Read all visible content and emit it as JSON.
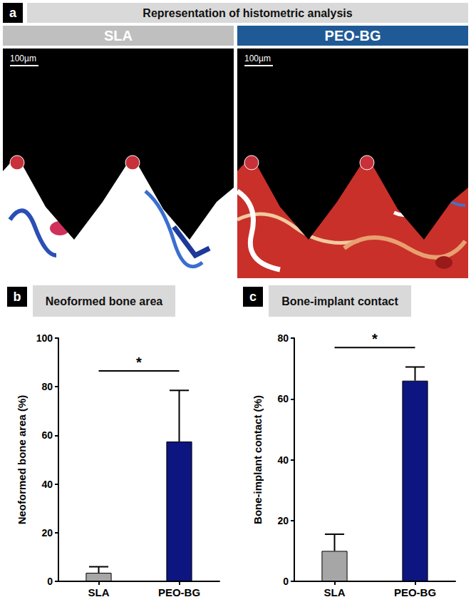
{
  "panel_a": {
    "label": "a",
    "title": "Representation of histometric analysis",
    "panels": [
      {
        "title": "SLA",
        "scale_bar": "100µm"
      },
      {
        "title": "PEO-BG",
        "scale_bar": "100µm"
      }
    ]
  },
  "chart_data": [
    {
      "type": "bar",
      "label": "b",
      "title": "Neoformed bone area",
      "y_label": "Neoformed bone area (%)",
      "categories": [
        "SLA",
        "PEO-BG"
      ],
      "values": [
        3.5,
        57.5
      ],
      "errors": [
        2.5,
        21
      ],
      "colors": [
        "#a6a6a6",
        "#0d1580"
      ],
      "ylim": [
        0,
        100
      ],
      "yticks": [
        0,
        20,
        40,
        60,
        80,
        100
      ],
      "grid": false,
      "annotations": [
        {
          "text": "*",
          "from": "SLA",
          "to": "PEO-BG"
        }
      ]
    },
    {
      "type": "bar",
      "label": "c",
      "title": "Bone-implant contact",
      "y_label": "Bone-implant contact (%)",
      "categories": [
        "SLA",
        "PEO-BG"
      ],
      "values": [
        10,
        66
      ],
      "errors": [
        5.5,
        4.5
      ],
      "colors": [
        "#a6a6a6",
        "#0d1580"
      ],
      "ylim": [
        0,
        80
      ],
      "yticks": [
        0,
        20,
        40,
        60,
        80
      ],
      "grid": false,
      "annotations": [
        {
          "text": "*",
          "from": "SLA",
          "to": "PEO-BG"
        }
      ]
    }
  ]
}
